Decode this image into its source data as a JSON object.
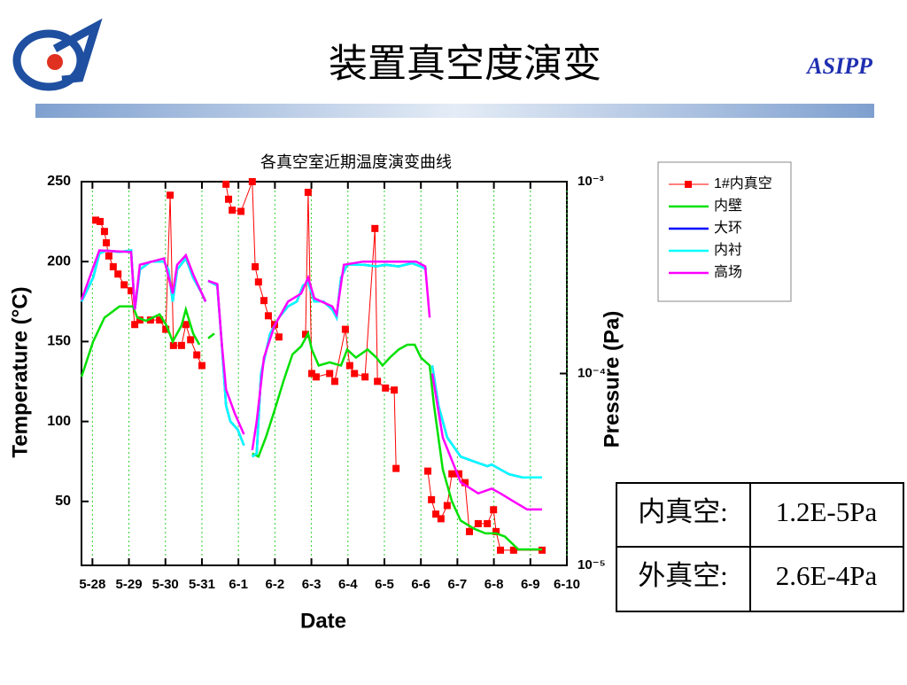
{
  "header": {
    "title": "装置真空度演变",
    "org": "ASIPP"
  },
  "chart_data": {
    "type": "line",
    "title": "各真空室近期温度演变曲线",
    "x_label": "Date",
    "y_label": "Temperature (°C)",
    "y2_label": "Pressure (Pa)",
    "xlim": [
      -0.3,
      13
    ],
    "xticks": [
      {
        "value": 0,
        "label": "5-28"
      },
      {
        "value": 1,
        "label": "5-29"
      },
      {
        "value": 2,
        "label": "5-30"
      },
      {
        "value": 3,
        "label": "5-31"
      },
      {
        "value": 4,
        "label": "6-1"
      },
      {
        "value": 5,
        "label": "6-2"
      },
      {
        "value": 6,
        "label": "6-3"
      },
      {
        "value": 7,
        "label": "6-4"
      },
      {
        "value": 8,
        "label": "6-5"
      },
      {
        "value": 9,
        "label": "6-6"
      },
      {
        "value": 10,
        "label": "6-7"
      },
      {
        "value": 11,
        "label": "6-8"
      },
      {
        "value": 12,
        "label": "6-9"
      },
      {
        "value": 13,
        "label": "6-10"
      }
    ],
    "ylim": [
      10,
      250
    ],
    "yticks": [
      50,
      100,
      150,
      200,
      250
    ],
    "y2lim": [
      1e-05,
      0.001
    ],
    "y2log": true,
    "y2ticks": [
      {
        "value": 0.001,
        "label": "10⁻³"
      },
      {
        "value": 0.0001,
        "label": "10⁻⁴"
      },
      {
        "value": 1e-05,
        "label": "10⁻⁵"
      }
    ],
    "grid": true,
    "legend": "upper right",
    "series": [
      {
        "name": "1#内真空",
        "color": "#ff0000",
        "axis": "y2",
        "marker": "square",
        "x": [
          0.09,
          0.21,
          0.33,
          0.38,
          0.45,
          0.57,
          0.7,
          0.87,
          1.06,
          1.16,
          1.3,
          1.59,
          1.84,
          2.01,
          2.13,
          2.22,
          2.44,
          2.56,
          2.69,
          2.86,
          3.0,
          3.33,
          3.66,
          3.73,
          3.83,
          4.07,
          4.38,
          4.46,
          4.55,
          4.7,
          4.82,
          4.99,
          5.11,
          5.5,
          5.84,
          5.91,
          6.01,
          6.13,
          6.5,
          6.64,
          6.93,
          7.05,
          7.18,
          7.47,
          7.74,
          7.81,
          8.03,
          8.27,
          8.32,
          8.8,
          9.19,
          9.29,
          9.41,
          9.55,
          9.72,
          9.85,
          10.04,
          10.21,
          10.33,
          10.57,
          10.82,
          10.99,
          11.06,
          11.18,
          11.54,
          12.32
        ],
        "values": [
          0.00063,
          0.00062,
          0.00055,
          0.00048,
          0.00041,
          0.00036,
          0.00033,
          0.00029,
          0.00027,
          0.00018,
          0.00019,
          0.00019,
          0.00019,
          0.00017,
          0.00085,
          0.00014,
          0.00014,
          0.00018,
          0.00015,
          0.000125,
          0.00011,
          null,
          0.00097,
          0.00081,
          0.00071,
          0.0007,
          0.001,
          0.00036,
          0.0003,
          0.00024,
          0.0002,
          0.00018,
          0.000155,
          null,
          0.00016,
          0.00088,
          0.0001,
          9.6e-05,
          0.0001,
          9.1e-05,
          0.00017,
          0.00011,
          0.0001,
          9.6e-05,
          0.00057,
          9.1e-05,
          8.4e-05,
          8.2e-05,
          3.2e-05,
          null,
          3.1e-05,
          2.2e-05,
          1.85e-05,
          1.75e-05,
          2.05e-05,
          3e-05,
          3e-05,
          2.7e-05,
          1.5e-05,
          1.65e-05,
          1.65e-05,
          1.95e-05,
          1.5e-05,
          1.2e-05,
          1.2e-05,
          1.2e-05
        ]
      },
      {
        "name": "内壁",
        "color": "#00e000",
        "x": [
          -0.3,
          0.02,
          0.33,
          0.74,
          1.11,
          1.23,
          1.47,
          1.84,
          2.03,
          2.2,
          2.44,
          2.56,
          2.76,
          2.93,
          3.05,
          3.17,
          3.34,
          3.9,
          4.38,
          4.55,
          4.75,
          4.99,
          5.23,
          5.48,
          5.72,
          5.91,
          6.01,
          6.2,
          6.5,
          6.81,
          6.98,
          7.22,
          7.54,
          7.78,
          7.95,
          8.15,
          8.39,
          8.63,
          8.83,
          9.0,
          9.24,
          9.36,
          9.6,
          9.85,
          10.09,
          10.45,
          10.77,
          11.06,
          11.3,
          11.67,
          12.32
        ],
        "values": [
          128,
          150,
          165,
          172,
          172,
          165,
          163,
          167,
          160,
          150,
          160,
          170,
          155,
          148,
          null,
          152,
          155,
          null,
          80,
          78,
          90,
          107,
          125,
          142,
          147,
          155,
          145,
          135,
          137,
          135,
          145,
          140,
          145,
          140,
          135,
          140,
          145,
          148,
          148,
          140,
          135,
          110,
          70,
          50,
          38,
          33,
          30,
          30,
          28,
          20,
          20
        ]
      },
      {
        "name": "大环",
        "color": "#0000ff",
        "x": [
          -0.3,
          0.02,
          0.19,
          0.38,
          0.74,
          1.06,
          1.16,
          1.3,
          1.59,
          1.96,
          2.08,
          2.2,
          2.32,
          2.56,
          2.76,
          3.0,
          3.1,
          3.15,
          3.17,
          3.42,
          3.54,
          3.66,
          3.78,
          3.98,
          4.15,
          4.25,
          4.38,
          4.5,
          4.62,
          4.87,
          5.11,
          5.36,
          5.6,
          5.77,
          5.91,
          6.08,
          6.33,
          6.57,
          6.69,
          6.81,
          6.98,
          7.42,
          7.78,
          8.03,
          8.39,
          8.75,
          8.99,
          9.16,
          9.25,
          9.31,
          9.48,
          9.72,
          10.09,
          10.45,
          10.82,
          10.94,
          11.18,
          11.42,
          11.79,
          12.32
        ],
        "values": [
          175,
          190,
          205,
          207,
          206,
          207,
          170,
          195,
          200,
          200,
          195,
          175,
          195,
          202,
          190,
          180,
          175,
          null,
          188,
          185,
          150,
          110,
          100,
          95,
          85,
          null,
          78,
          80,
          130,
          155,
          165,
          172,
          175,
          185,
          187,
          175,
          175,
          170,
          165,
          190,
          198,
          198,
          197,
          198,
          197,
          199,
          197,
          195,
          null,
          135,
          110,
          90,
          78,
          75,
          72,
          73,
          70,
          67,
          65,
          65
        ]
      },
      {
        "name": "内衬",
        "color": "#00ffff",
        "x": [
          -0.3,
          0.02,
          0.19,
          0.38,
          0.74,
          1.06,
          1.16,
          1.3,
          1.59,
          1.96,
          2.08,
          2.2,
          2.32,
          2.56,
          2.76,
          3.0,
          3.1,
          3.15,
          3.17,
          3.42,
          3.54,
          3.66,
          3.78,
          3.98,
          4.15,
          4.25,
          4.38,
          4.5,
          4.62,
          4.87,
          5.11,
          5.36,
          5.6,
          5.77,
          5.91,
          6.08,
          6.33,
          6.57,
          6.69,
          6.81,
          6.98,
          7.42,
          7.78,
          8.03,
          8.39,
          8.75,
          8.99,
          9.16,
          9.25,
          9.31,
          9.48,
          9.72,
          10.09,
          10.45,
          10.82,
          10.94,
          11.18,
          11.42,
          11.79,
          12.32
        ],
        "values": [
          175,
          190,
          205,
          207,
          206,
          207,
          170,
          195,
          200,
          200,
          195,
          175,
          195,
          202,
          190,
          180,
          175,
          null,
          188,
          185,
          150,
          110,
          100,
          95,
          85,
          null,
          78,
          80,
          130,
          155,
          165,
          172,
          175,
          185,
          187,
          175,
          175,
          170,
          165,
          190,
          198,
          198,
          197,
          198,
          197,
          199,
          197,
          195,
          null,
          135,
          110,
          90,
          78,
          75,
          72,
          73,
          70,
          67,
          65,
          65
        ]
      },
      {
        "name": "高场",
        "color": "#ff00ff",
        "x": [
          -0.3,
          0.19,
          1.06,
          1.16,
          1.3,
          1.96,
          2.2,
          2.32,
          2.56,
          2.76,
          3.1,
          3.15,
          3.17,
          3.42,
          3.54,
          3.66,
          3.9,
          4.15,
          4.25,
          4.38,
          4.5,
          4.7,
          4.99,
          5.36,
          5.72,
          5.91,
          6.08,
          6.57,
          6.69,
          6.89,
          7.42,
          8.39,
          8.87,
          9.12,
          9.24,
          9.29,
          9.31,
          9.6,
          10.09,
          10.57,
          10.94,
          11.18,
          11.54,
          11.91,
          12.32
        ],
        "values": [
          176,
          207,
          206,
          170,
          198,
          202,
          180,
          198,
          204,
          192,
          175,
          null,
          188,
          186,
          150,
          120,
          105,
          92,
          null,
          82,
          100,
          140,
          160,
          175,
          180,
          190,
          177,
          172,
          167,
          198,
          200,
          200,
          200,
          197,
          165,
          null,
          130,
          90,
          62,
          55,
          58,
          55,
          50,
          45,
          45
        ]
      }
    ]
  },
  "table": {
    "rows": [
      [
        "内真空:",
        "1.2E-5Pa"
      ],
      [
        "外真空:",
        "2.6E-4Pa"
      ]
    ]
  }
}
